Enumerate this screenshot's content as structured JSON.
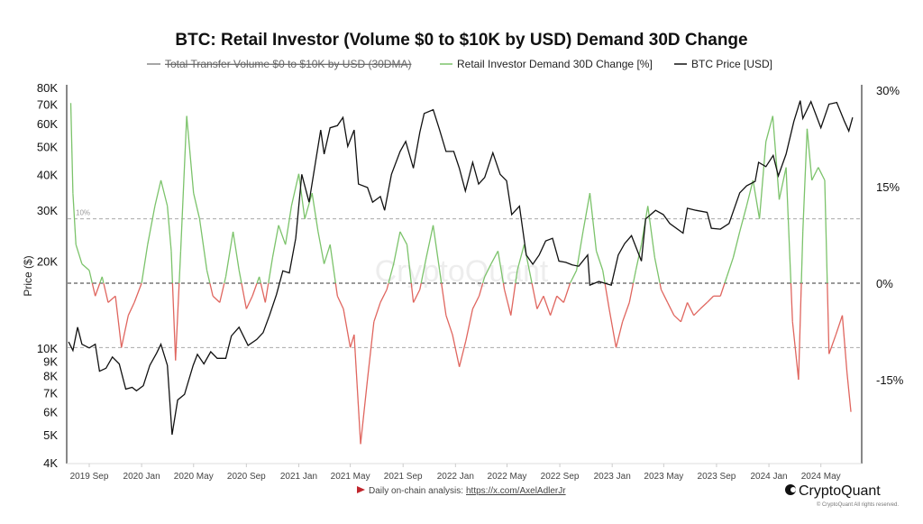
{
  "chart_data": {
    "type": "line",
    "title": "BTC: Retail Investor (Volume $0 to $10K by USD) Demand 30D Change",
    "legend": [
      {
        "name": "Total Transfer Volume $0 to $10K by USD (30DMA)",
        "color": "#888888",
        "hidden": true
      },
      {
        "name": "Retail Investor Demand 30D Change [%]",
        "color": "#7cc36b"
      },
      {
        "name": "BTC Price [USD]",
        "color": "#111111"
      }
    ],
    "legend_position": "top",
    "ylabel_left": "Price ($)",
    "left_axis": {
      "scale": "log",
      "range": [
        4000,
        80000
      ],
      "ticks": [
        "80K",
        "70K",
        "60K",
        "50K",
        "40K",
        "30K",
        "20K",
        "10K",
        "9K",
        "8K",
        "7K",
        "6K",
        "5K",
        "4K"
      ],
      "tick_values": [
        80000,
        70000,
        60000,
        50000,
        40000,
        30000,
        20000,
        10000,
        9000,
        8000,
        7000,
        6000,
        5000,
        4000
      ]
    },
    "right_axis": {
      "range": [
        -25,
        30
      ],
      "ticks": [
        "30%",
        "15%",
        "0%",
        "-15%"
      ],
      "tick_values": [
        30,
        15,
        0,
        -15
      ]
    },
    "x_ticks": [
      "2019 Sep",
      "2020 Jan",
      "2020 May",
      "2020 Sep",
      "2021 Jan",
      "2021 May",
      "2021 Sep",
      "2022 Jan",
      "2022 May",
      "2022 Sep",
      "2023 Jan",
      "2023 May",
      "2023 Sep",
      "2024 Jan",
      "2024 May"
    ],
    "x_tick_dates": [
      "2019-09-01",
      "2020-01-01",
      "2020-05-01",
      "2020-09-01",
      "2021-01-01",
      "2021-05-01",
      "2021-09-01",
      "2022-01-01",
      "2022-05-01",
      "2022-09-01",
      "2023-01-01",
      "2023-05-01",
      "2023-09-01",
      "2024-01-01",
      "2024-05-01"
    ],
    "reference_lines": [
      {
        "value": 10,
        "label": "10%"
      },
      {
        "value": 0,
        "label": ""
      },
      {
        "value": -10,
        "label": ""
      }
    ],
    "positive_color": "#7cc36b",
    "negative_color": "#e0665f",
    "price_color": "#111111",
    "series": [
      {
        "name": "BTC Price [USD]",
        "axis": "left",
        "points": [
          [
            "2019-07-15",
            10500
          ],
          [
            "2019-07-25",
            9800
          ],
          [
            "2019-08-05",
            11800
          ],
          [
            "2019-08-15",
            10300
          ],
          [
            "2019-09-01",
            10000
          ],
          [
            "2019-09-15",
            10300
          ],
          [
            "2019-09-25",
            8300
          ],
          [
            "2019-10-10",
            8500
          ],
          [
            "2019-10-25",
            9300
          ],
          [
            "2019-11-10",
            8800
          ],
          [
            "2019-11-25",
            7200
          ],
          [
            "2019-12-10",
            7300
          ],
          [
            "2019-12-20",
            7100
          ],
          [
            "2020-01-05",
            7400
          ],
          [
            "2020-01-20",
            8700
          ],
          [
            "2020-02-05",
            9600
          ],
          [
            "2020-02-15",
            10300
          ],
          [
            "2020-03-01",
            8700
          ],
          [
            "2020-03-12",
            5000
          ],
          [
            "2020-03-25",
            6600
          ],
          [
            "2020-04-10",
            6900
          ],
          [
            "2020-04-30",
            8700
          ],
          [
            "2020-05-10",
            9500
          ],
          [
            "2020-05-25",
            8800
          ],
          [
            "2020-06-10",
            9700
          ],
          [
            "2020-06-25",
            9200
          ],
          [
            "2020-07-15",
            9200
          ],
          [
            "2020-07-28",
            11000
          ],
          [
            "2020-08-15",
            11800
          ],
          [
            "2020-09-05",
            10200
          ],
          [
            "2020-09-25",
            10700
          ],
          [
            "2020-10-10",
            11300
          ],
          [
            "2020-10-25",
            13000
          ],
          [
            "2020-11-10",
            15300
          ],
          [
            "2020-11-25",
            18500
          ],
          [
            "2020-12-10",
            18200
          ],
          [
            "2020-12-25",
            24000
          ],
          [
            "2021-01-08",
            40000
          ],
          [
            "2021-01-25",
            32000
          ],
          [
            "2021-02-10",
            45000
          ],
          [
            "2021-02-21",
            57000
          ],
          [
            "2021-03-01",
            47000
          ],
          [
            "2021-03-15",
            58000
          ],
          [
            "2021-04-01",
            59000
          ],
          [
            "2021-04-14",
            63000
          ],
          [
            "2021-04-25",
            50000
          ],
          [
            "2021-05-10",
            57000
          ],
          [
            "2021-05-20",
            37000
          ],
          [
            "2021-06-10",
            36000
          ],
          [
            "2021-06-22",
            32000
          ],
          [
            "2021-07-10",
            33500
          ],
          [
            "2021-07-20",
            30000
          ],
          [
            "2021-08-05",
            40000
          ],
          [
            "2021-08-25",
            48000
          ],
          [
            "2021-09-07",
            52000
          ],
          [
            "2021-09-25",
            42000
          ],
          [
            "2021-10-10",
            56000
          ],
          [
            "2021-10-20",
            65000
          ],
          [
            "2021-11-10",
            67000
          ],
          [
            "2021-11-25",
            57000
          ],
          [
            "2021-12-10",
            48000
          ],
          [
            "2021-12-28",
            48000
          ],
          [
            "2022-01-10",
            42000
          ],
          [
            "2022-01-24",
            35000
          ],
          [
            "2022-02-10",
            44000
          ],
          [
            "2022-02-24",
            37000
          ],
          [
            "2022-03-10",
            39000
          ],
          [
            "2022-03-29",
            47500
          ],
          [
            "2022-04-15",
            40000
          ],
          [
            "2022-04-30",
            38000
          ],
          [
            "2022-05-12",
            29000
          ],
          [
            "2022-05-30",
            31000
          ],
          [
            "2022-06-15",
            21000
          ],
          [
            "2022-06-30",
            19500
          ],
          [
            "2022-07-15",
            21000
          ],
          [
            "2022-07-30",
            23500
          ],
          [
            "2022-08-15",
            24000
          ],
          [
            "2022-08-30",
            20000
          ],
          [
            "2022-09-15",
            19800
          ],
          [
            "2022-09-30",
            19400
          ],
          [
            "2022-10-15",
            19200
          ],
          [
            "2022-11-05",
            21000
          ],
          [
            "2022-11-10",
            16500
          ],
          [
            "2022-12-01",
            17000
          ],
          [
            "2022-12-30",
            16500
          ],
          [
            "2023-01-15",
            21000
          ],
          [
            "2023-01-30",
            23000
          ],
          [
            "2023-02-15",
            24500
          ],
          [
            "2023-03-10",
            20000
          ],
          [
            "2023-03-20",
            28000
          ],
          [
            "2023-04-12",
            30000
          ],
          [
            "2023-04-30",
            29000
          ],
          [
            "2023-05-15",
            27000
          ],
          [
            "2023-06-15",
            25000
          ],
          [
            "2023-06-25",
            30500
          ],
          [
            "2023-07-15",
            30000
          ],
          [
            "2023-08-10",
            29500
          ],
          [
            "2023-08-20",
            26000
          ],
          [
            "2023-09-10",
            25800
          ],
          [
            "2023-09-30",
            27000
          ],
          [
            "2023-10-25",
            34500
          ],
          [
            "2023-11-10",
            36500
          ],
          [
            "2023-11-30",
            37800
          ],
          [
            "2023-12-08",
            44000
          ],
          [
            "2023-12-25",
            42500
          ],
          [
            "2024-01-11",
            46500
          ],
          [
            "2024-01-23",
            39500
          ],
          [
            "2024-02-10",
            47000
          ],
          [
            "2024-02-28",
            61000
          ],
          [
            "2024-03-14",
            72000
          ],
          [
            "2024-03-20",
            62500
          ],
          [
            "2024-04-08",
            71500
          ],
          [
            "2024-04-20",
            64000
          ],
          [
            "2024-05-01",
            58000
          ],
          [
            "2024-05-20",
            70000
          ],
          [
            "2024-06-07",
            71000
          ],
          [
            "2024-06-25",
            61000
          ],
          [
            "2024-07-05",
            56500
          ],
          [
            "2024-07-14",
            63000
          ]
        ]
      },
      {
        "name": "Retail Investor Demand 30D Change [%]",
        "axis": "right",
        "points": [
          [
            "2019-07-20",
            28
          ],
          [
            "2019-07-25",
            14
          ],
          [
            "2019-08-01",
            6
          ],
          [
            "2019-08-15",
            3
          ],
          [
            "2019-09-01",
            2
          ],
          [
            "2019-09-15",
            -2
          ],
          [
            "2019-10-01",
            1
          ],
          [
            "2019-10-15",
            -3
          ],
          [
            "2019-11-01",
            -2
          ],
          [
            "2019-11-15",
            -10
          ],
          [
            "2019-12-01",
            -5
          ],
          [
            "2019-12-15",
            -3
          ],
          [
            "2020-01-01",
            0
          ],
          [
            "2020-01-15",
            6
          ],
          [
            "2020-02-01",
            12
          ],
          [
            "2020-02-15",
            16
          ],
          [
            "2020-03-01",
            12
          ],
          [
            "2020-03-10",
            5
          ],
          [
            "2020-03-20",
            -12
          ],
          [
            "2020-04-01",
            5
          ],
          [
            "2020-04-15",
            26
          ],
          [
            "2020-05-01",
            14
          ],
          [
            "2020-05-15",
            10
          ],
          [
            "2020-06-01",
            2
          ],
          [
            "2020-06-15",
            -2
          ],
          [
            "2020-07-01",
            -3
          ],
          [
            "2020-07-15",
            1
          ],
          [
            "2020-08-01",
            8
          ],
          [
            "2020-08-15",
            2
          ],
          [
            "2020-09-01",
            -4
          ],
          [
            "2020-09-15",
            -2
          ],
          [
            "2020-10-01",
            1
          ],
          [
            "2020-10-15",
            -3
          ],
          [
            "2020-11-01",
            4
          ],
          [
            "2020-11-15",
            9
          ],
          [
            "2020-12-01",
            6
          ],
          [
            "2020-12-15",
            12
          ],
          [
            "2021-01-01",
            17
          ],
          [
            "2021-01-15",
            10
          ],
          [
            "2021-02-01",
            14
          ],
          [
            "2021-02-15",
            8
          ],
          [
            "2021-03-01",
            3
          ],
          [
            "2021-03-15",
            6
          ],
          [
            "2021-04-01",
            -2
          ],
          [
            "2021-04-15",
            -4
          ],
          [
            "2021-05-01",
            -10
          ],
          [
            "2021-05-10",
            -8
          ],
          [
            "2021-05-25",
            -25
          ],
          [
            "2021-06-10",
            -15
          ],
          [
            "2021-06-25",
            -6
          ],
          [
            "2021-07-10",
            -3
          ],
          [
            "2021-07-25",
            -1
          ],
          [
            "2021-08-10",
            3
          ],
          [
            "2021-08-25",
            8
          ],
          [
            "2021-09-10",
            6
          ],
          [
            "2021-09-25",
            -3
          ],
          [
            "2021-10-10",
            -1
          ],
          [
            "2021-10-25",
            4
          ],
          [
            "2021-11-10",
            9
          ],
          [
            "2021-11-25",
            2
          ],
          [
            "2021-12-10",
            -5
          ],
          [
            "2021-12-25",
            -8
          ],
          [
            "2022-01-10",
            -13
          ],
          [
            "2022-01-25",
            -9
          ],
          [
            "2022-02-10",
            -4
          ],
          [
            "2022-02-25",
            -2
          ],
          [
            "2022-03-10",
            1
          ],
          [
            "2022-03-25",
            3
          ],
          [
            "2022-04-10",
            5
          ],
          [
            "2022-04-25",
            -1
          ],
          [
            "2022-05-10",
            -5
          ],
          [
            "2022-05-25",
            2
          ],
          [
            "2022-06-10",
            6
          ],
          [
            "2022-06-25",
            1
          ],
          [
            "2022-07-10",
            -4
          ],
          [
            "2022-07-25",
            -2
          ],
          [
            "2022-08-10",
            -5
          ],
          [
            "2022-08-25",
            -2
          ],
          [
            "2022-09-10",
            -3
          ],
          [
            "2022-09-25",
            0
          ],
          [
            "2022-10-10",
            2
          ],
          [
            "2022-10-25",
            8
          ],
          [
            "2022-11-10",
            14
          ],
          [
            "2022-11-25",
            5
          ],
          [
            "2022-12-10",
            2
          ],
          [
            "2022-12-25",
            -4
          ],
          [
            "2023-01-10",
            -10
          ],
          [
            "2023-01-25",
            -6
          ],
          [
            "2023-02-10",
            -3
          ],
          [
            "2023-02-25",
            2
          ],
          [
            "2023-03-10",
            6
          ],
          [
            "2023-03-25",
            12
          ],
          [
            "2023-04-10",
            4
          ],
          [
            "2023-04-25",
            -1
          ],
          [
            "2023-05-10",
            -3
          ],
          [
            "2023-05-25",
            -5
          ],
          [
            "2023-06-10",
            -6
          ],
          [
            "2023-06-25",
            -3
          ],
          [
            "2023-07-10",
            -5
          ],
          [
            "2023-07-25",
            -4
          ],
          [
            "2023-08-10",
            -3
          ],
          [
            "2023-08-25",
            -2
          ],
          [
            "2023-09-10",
            -2
          ],
          [
            "2023-09-25",
            1
          ],
          [
            "2023-10-10",
            4
          ],
          [
            "2023-10-25",
            8
          ],
          [
            "2023-11-10",
            12
          ],
          [
            "2023-11-25",
            16
          ],
          [
            "2023-12-10",
            10
          ],
          [
            "2023-12-25",
            22
          ],
          [
            "2024-01-10",
            26
          ],
          [
            "2024-01-25",
            13
          ],
          [
            "2024-02-10",
            18
          ],
          [
            "2024-02-25",
            -6
          ],
          [
            "2024-03-10",
            -15
          ],
          [
            "2024-03-20",
            8
          ],
          [
            "2024-03-30",
            24
          ],
          [
            "2024-04-10",
            16
          ],
          [
            "2024-04-25",
            18
          ],
          [
            "2024-05-10",
            16
          ],
          [
            "2024-05-20",
            -11
          ],
          [
            "2024-06-05",
            -8
          ],
          [
            "2024-06-20",
            -5
          ],
          [
            "2024-07-01",
            -14
          ],
          [
            "2024-07-10",
            -20
          ]
        ]
      }
    ],
    "watermark": "CryptoQuant"
  },
  "footer": {
    "note": "Daily on-chain analysis:",
    "link": "https://x.com/AxelAdlerJr",
    "brand": "CryptoQuant",
    "copyright": "© CryptoQuant All rights reserved."
  }
}
